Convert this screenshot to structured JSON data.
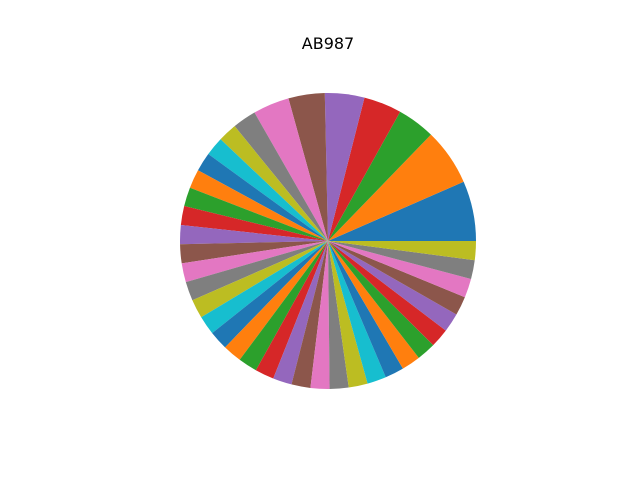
{
  "chart_data": {
    "type": "pie",
    "title": "AB987",
    "start_angle_deg": 0,
    "direction": "counterclockwise",
    "values": [
      7.6,
      7.2,
      4.8,
      4.8,
      5.0,
      4.6,
      4.6,
      3.0,
      2.4,
      2.4,
      2.4,
      2.4,
      2.4,
      2.4,
      2.4,
      2.4,
      2.4,
      2.4,
      2.4,
      2.4,
      2.4,
      2.4,
      2.4,
      2.4,
      2.4,
      2.4,
      2.4,
      2.4,
      2.4,
      2.4,
      2.4,
      2.4,
      2.4,
      2.4,
      2.4,
      2.4,
      2.4,
      2.4,
      2.4
    ],
    "colors": [
      "#1f77b4",
      "#ff7f0e",
      "#2ca02c",
      "#d62728",
      "#9467bd",
      "#8c564b",
      "#e377c2",
      "#7f7f7f",
      "#bcbd22",
      "#17becf"
    ]
  }
}
